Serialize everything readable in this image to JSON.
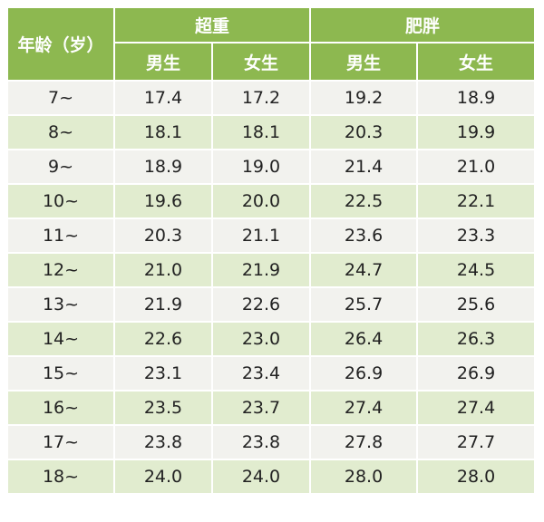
{
  "header": {
    "age_label": "年龄（岁）",
    "groups": [
      {
        "label": "超重"
      },
      {
        "label": "肥胖"
      }
    ],
    "sub_labels": [
      "男生",
      "女生",
      "男生",
      "女生"
    ]
  },
  "rows": [
    {
      "age": "7~",
      "values": [
        "17.4",
        "17.2",
        "19.2",
        "18.9"
      ]
    },
    {
      "age": "8~",
      "values": [
        "18.1",
        "18.1",
        "20.3",
        "19.9"
      ]
    },
    {
      "age": "9~",
      "values": [
        "18.9",
        "19.0",
        "21.4",
        "21.0"
      ]
    },
    {
      "age": "10~",
      "values": [
        "19.6",
        "20.0",
        "22.5",
        "22.1"
      ]
    },
    {
      "age": "11~",
      "values": [
        "20.3",
        "21.1",
        "23.6",
        "23.3"
      ]
    },
    {
      "age": "12~",
      "values": [
        "21.0",
        "21.9",
        "24.7",
        "24.5"
      ]
    },
    {
      "age": "13~",
      "values": [
        "21.9",
        "22.6",
        "25.7",
        "25.6"
      ]
    },
    {
      "age": "14~",
      "values": [
        "22.6",
        "23.0",
        "26.4",
        "26.3"
      ]
    },
    {
      "age": "15~",
      "values": [
        "23.1",
        "23.4",
        "26.9",
        "26.9"
      ]
    },
    {
      "age": "16~",
      "values": [
        "23.5",
        "23.7",
        "27.4",
        "27.4"
      ]
    },
    {
      "age": "17~",
      "values": [
        "23.8",
        "23.8",
        "27.8",
        "27.7"
      ]
    },
    {
      "age": "18~",
      "values": [
        "24.0",
        "24.0",
        "28.0",
        "28.0"
      ]
    }
  ],
  "colors": {
    "header_bg": "#8db850",
    "header_text": "#ffffff",
    "row_light": "#f2f2ee",
    "row_green": "#e1eccf",
    "body_text": "#222222"
  }
}
